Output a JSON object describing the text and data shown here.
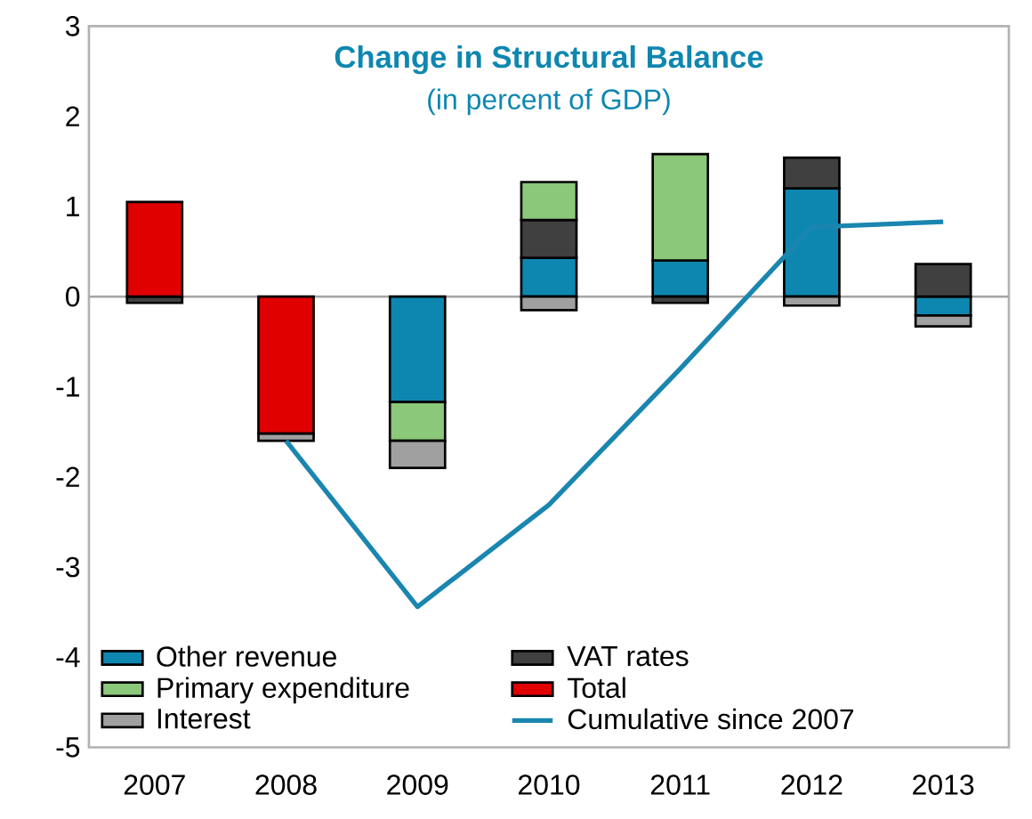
{
  "chart_data": {
    "type": "bar",
    "stacked": true,
    "title": "Change in Structural Balance",
    "subtitle": "(in percent of GDP)",
    "categories": [
      "2007",
      "2008",
      "2009",
      "2010",
      "2011",
      "2012",
      "2013"
    ],
    "series": [
      {
        "name": "Other revenue",
        "color": "#0e87b0",
        "values": [
          null,
          null,
          -1.17,
          0.43,
          0.4,
          1.2,
          -0.21
        ]
      },
      {
        "name": "VAT rates",
        "color": "#404040",
        "values": [
          -0.07,
          null,
          null,
          0.42,
          -0.07,
          0.34,
          0.36
        ]
      },
      {
        "name": "Primary expenditure",
        "color": "#8cc87a",
        "values": [
          null,
          null,
          -0.43,
          0.42,
          1.18,
          null,
          null
        ]
      },
      {
        "name": "Total",
        "color": "#e00000",
        "values": [
          1.05,
          -1.52,
          null,
          null,
          null,
          null,
          null
        ]
      },
      {
        "name": "Interest",
        "color": "#a0a0a0",
        "values": [
          null,
          -0.08,
          -0.3,
          -0.15,
          null,
          -0.1,
          -0.12
        ]
      },
      {
        "name": "Cumulative since 2007",
        "type": "line",
        "color": "#1a86b0",
        "values": [
          null,
          -1.6,
          -3.44,
          -2.31,
          -0.8,
          0.77,
          0.83
        ]
      }
    ],
    "ref_lines": [
      {
        "axis": "y",
        "value": 0,
        "color": "#a6a6a6"
      }
    ],
    "ylim": [
      -5,
      3
    ],
    "yticks": [
      -5,
      -4,
      -3,
      -2,
      -1,
      0,
      1,
      2,
      3
    ],
    "grid": false,
    "legend": "bottom"
  }
}
